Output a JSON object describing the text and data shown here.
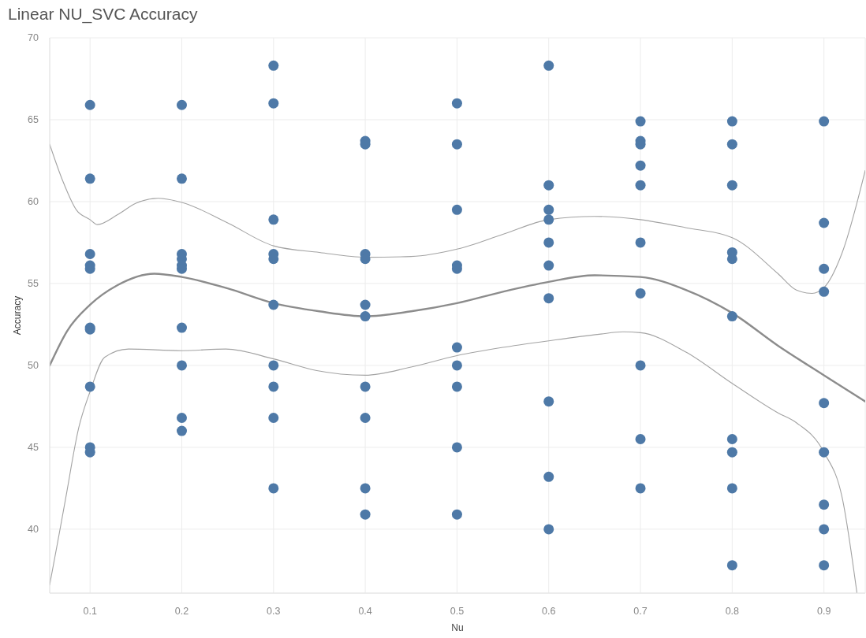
{
  "chart_data": {
    "type": "scatter",
    "title": "Linear NU_SVC Accuracy",
    "xlabel": "Nu",
    "ylabel": "Accuracy",
    "xlim": [
      0.056,
      0.945
    ],
    "ylim": [
      36.1,
      70
    ],
    "xticks": [
      0.1,
      0.2,
      0.3,
      0.4,
      0.5,
      0.6,
      0.7,
      0.8,
      0.9
    ],
    "yticks": [
      40,
      45,
      50,
      55,
      60,
      65,
      70
    ],
    "grid": true,
    "series": [
      {
        "marker": "circle",
        "color": "#4e79a7",
        "x": [
          0.1,
          0.1,
          0.1,
          0.1,
          0.1,
          0.1,
          0.1,
          0.1,
          0.1,
          0.1,
          0.2,
          0.2,
          0.2,
          0.2,
          0.2,
          0.2,
          0.2,
          0.2,
          0.2,
          0.2,
          0.3,
          0.3,
          0.3,
          0.3,
          0.3,
          0.3,
          0.3,
          0.3,
          0.3,
          0.3,
          0.4,
          0.4,
          0.4,
          0.4,
          0.4,
          0.4,
          0.4,
          0.4,
          0.4,
          0.4,
          0.5,
          0.5,
          0.5,
          0.5,
          0.5,
          0.5,
          0.5,
          0.5,
          0.5,
          0.5,
          0.6,
          0.6,
          0.6,
          0.6,
          0.6,
          0.6,
          0.6,
          0.6,
          0.6,
          0.6,
          0.7,
          0.7,
          0.7,
          0.7,
          0.7,
          0.7,
          0.7,
          0.7,
          0.7,
          0.7,
          0.8,
          0.8,
          0.8,
          0.8,
          0.8,
          0.8,
          0.8,
          0.8,
          0.8,
          0.8,
          0.9,
          0.9,
          0.9,
          0.9,
          0.9,
          0.9,
          0.9,
          0.9,
          0.9
        ],
        "values": [
          65.9,
          61.4,
          56.8,
          56.1,
          55.9,
          52.3,
          52.2,
          48.7,
          45,
          44.7,
          65.9,
          61.4,
          56.8,
          56.5,
          56.1,
          55.9,
          52.3,
          50,
          46.8,
          46,
          68.3,
          66,
          58.9,
          56.8,
          56.5,
          53.7,
          50,
          48.7,
          46.8,
          42.5,
          63.7,
          63.5,
          56.8,
          56.5,
          53.7,
          53,
          48.7,
          46.8,
          42.5,
          40.9,
          66,
          63.5,
          59.5,
          56.1,
          55.9,
          51.1,
          50,
          48.7,
          45,
          40.9,
          68.3,
          61,
          59.5,
          58.9,
          57.5,
          56.1,
          54.1,
          47.8,
          43.2,
          40,
          64.9,
          63.7,
          63.5,
          62.2,
          61,
          57.5,
          54.4,
          50,
          45.5,
          42.5,
          64.9,
          63.5,
          61,
          56.9,
          56.5,
          53,
          45.5,
          44.7,
          42.5,
          37.8,
          64.9,
          58.7,
          55.9,
          54.5,
          47.7,
          44.7,
          41.5,
          40,
          37.8
        ]
      },
      {
        "type": "line",
        "color": "#8c8c8c",
        "x": [
          0.056,
          0.075,
          0.1,
          0.13,
          0.17,
          0.2,
          0.25,
          0.3,
          0.35,
          0.4,
          0.45,
          0.5,
          0.55,
          0.6,
          0.65,
          0.7,
          0.75,
          0.8,
          0.85,
          0.9,
          0.945
        ],
        "values": [
          50,
          52.1,
          53.7,
          54.9,
          55.6,
          55.4,
          54.7,
          53.8,
          53.3,
          53,
          53.3,
          53.8,
          54.5,
          55.1,
          55.5,
          55.4,
          54.6,
          53.2,
          51.2,
          49.4,
          47.8
        ]
      },
      {
        "type": "line",
        "color": "#a3a3a3",
        "x": [
          0.056,
          0.07,
          0.085,
          0.1,
          0.108,
          0.13,
          0.15,
          0.174,
          0.2,
          0.25,
          0.3,
          0.35,
          0.4,
          0.45,
          0.5,
          0.55,
          0.6,
          0.65,
          0.7,
          0.75,
          0.8,
          0.85,
          0.87,
          0.887,
          0.9,
          0.92,
          0.945
        ],
        "values": [
          63.5,
          61.3,
          59.5,
          58.9,
          58.6,
          59.2,
          59.9,
          60.2,
          59.95,
          58.7,
          57.3,
          56.9,
          56.6,
          56.65,
          57.1,
          58,
          58.9,
          59.1,
          58.9,
          58.4,
          57.8,
          55.6,
          54.6,
          54.4,
          54.75,
          56.9,
          61.9
        ]
      },
      {
        "type": "line",
        "color": "#a3a3a3",
        "x": [
          0.056,
          0.065,
          0.0733,
          0.0877,
          0.1,
          0.116,
          0.142,
          0.2,
          0.248,
          0.3,
          0.346,
          0.4,
          0.45,
          0.5,
          0.55,
          0.6,
          0.655,
          0.681,
          0.7,
          0.75,
          0.8,
          0.85,
          0.87,
          0.9,
          0.92,
          0.936
        ],
        "values": [
          36.6,
          39.3,
          41.85,
          46.2,
          48.4,
          50.5,
          51,
          50.9,
          51,
          50.4,
          49.7,
          49.4,
          49.9,
          50.6,
          51.1,
          51.5,
          51.9,
          52.05,
          52,
          50.8,
          48.9,
          47.1,
          46.5,
          44.7,
          41.9,
          36.1
        ]
      }
    ]
  }
}
